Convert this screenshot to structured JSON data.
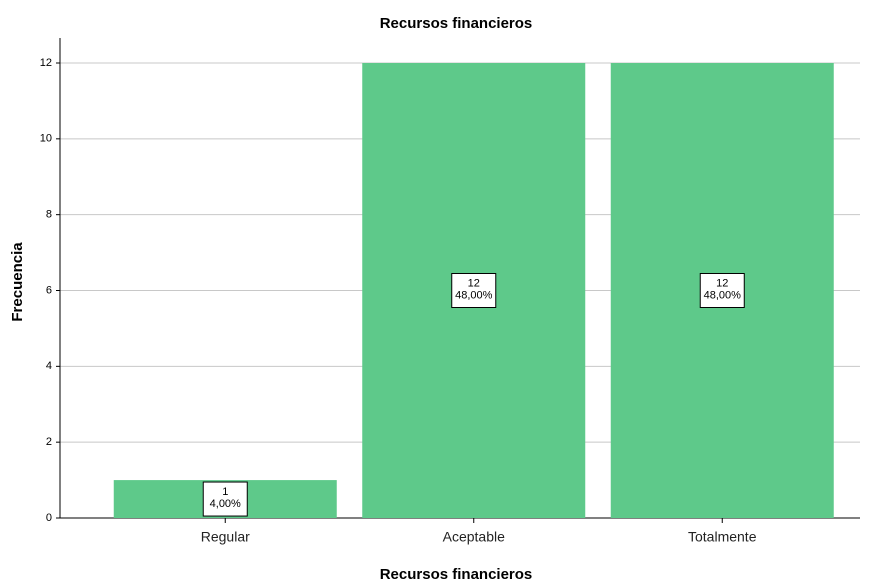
{
  "chart_data": {
    "type": "bar",
    "title": "Recursos financieros",
    "x_label": "Recursos financieros",
    "y_label": "Frecuencia",
    "categories": [
      "Regular",
      "Aceptable",
      "Totalmente"
    ],
    "values": [
      1,
      12,
      12
    ],
    "percent_labels": [
      "4,00%",
      "48,00%",
      "48,00%"
    ],
    "color": "#5ec98a",
    "ylim": [
      0,
      12
    ],
    "yticks": [
      0,
      2,
      4,
      6,
      8,
      10,
      12
    ],
    "grid": true
  }
}
